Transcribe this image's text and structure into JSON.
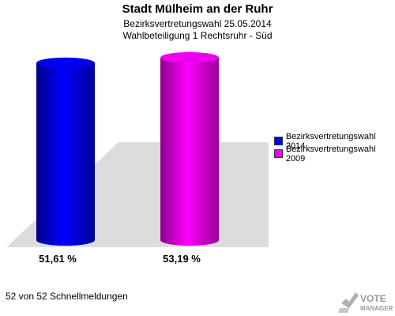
{
  "header": {
    "title": "Stadt Mülheim an der Ruhr",
    "subtitle1": "Bezirksvertretungswahl 25.05.2014",
    "subtitle2": "Wahlbeteiligung 1 Rechtsruhr - Süd"
  },
  "chart_data": {
    "type": "bar",
    "categories": [
      "Bezirksvertretungswahl 2014",
      "Bezirksvertretungswahl 2009"
    ],
    "values": [
      51.61,
      53.19
    ],
    "value_labels": [
      "51,61 %",
      "53,19 %"
    ],
    "colors": [
      "#0000ee",
      "#ee00ee"
    ],
    "legend_position": "right",
    "ylim": [
      0,
      53.19
    ]
  },
  "footer": {
    "text": "52 von 52 Schnellmeldungen"
  },
  "logo": {
    "line1": "VOTE",
    "line2": "MANAGER"
  }
}
